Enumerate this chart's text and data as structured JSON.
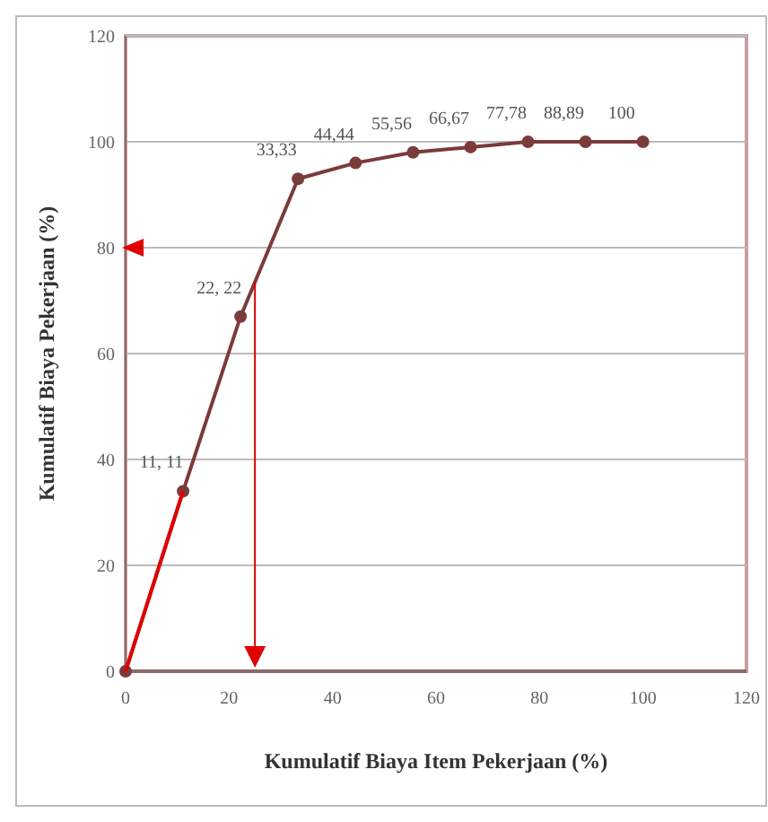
{
  "chart_data": {
    "type": "line",
    "xlabel": "Kumulatif Biaya Item Pekerjaan (%)",
    "ylabel": "Kumulatif Biaya Pekerjaan (%)",
    "x": [
      0,
      11.11,
      22.22,
      33.33,
      44.44,
      55.56,
      66.67,
      77.78,
      88.89,
      100
    ],
    "series": [
      {
        "color": "#7b3b3b",
        "values": [
          0,
          34,
          67,
          93,
          96,
          98,
          99,
          100,
          100,
          100
        ],
        "marker": "circle"
      },
      {
        "color": "#e00000",
        "x": [
          0,
          11.11
        ],
        "values": [
          0,
          34
        ],
        "marker": "none"
      }
    ],
    "annotations": [
      {
        "text": "11, 11",
        "x": 11.11,
        "y": 34
      },
      {
        "text": "22, 22",
        "x": 22.22,
        "y": 67
      },
      {
        "text": "33,33",
        "x": 33.33,
        "y": 93
      },
      {
        "text": "44,44",
        "x": 44.44,
        "y": 96
      },
      {
        "text": "55,56",
        "x": 55.56,
        "y": 98
      },
      {
        "text": "66,67",
        "x": 66.67,
        "y": 99
      },
      {
        "text": "77,78",
        "x": 77.78,
        "y": 100
      },
      {
        "text": "88,89",
        "x": 88.89,
        "y": 100
      },
      {
        "text": "100",
        "x": 100,
        "y": 100
      }
    ],
    "xlim": [
      0,
      120
    ],
    "xticks": [
      0,
      20,
      40,
      60,
      80,
      100,
      120
    ],
    "ylim": [
      0,
      120
    ],
    "yticks": [
      0,
      20,
      40,
      60,
      80,
      100,
      120
    ],
    "grid": "y",
    "ref_lines": [
      {
        "axis": "x",
        "value": 25,
        "color": "#e00000"
      }
    ]
  }
}
